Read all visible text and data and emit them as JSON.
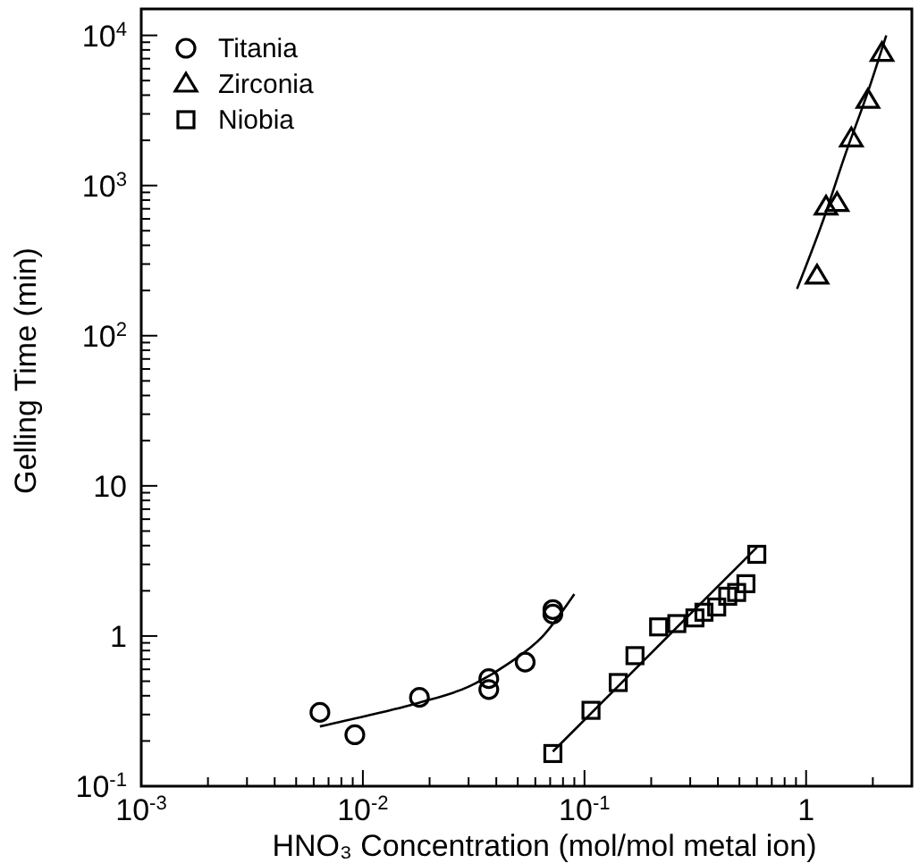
{
  "chart_data": {
    "type": "scatter",
    "xlabel": "HNO₃ Concentration (mol/mol metal ion)",
    "ylabel": "Gelling Time (min)",
    "log": "xy",
    "xlim": [
      0.001,
      3
    ],
    "ylim": [
      0.1,
      15000
    ],
    "xticks": [
      {
        "value": 0.001,
        "label": "10$^{-3}$"
      },
      {
        "value": 0.002,
        "label": null
      },
      {
        "value": 0.003,
        "label": null
      },
      {
        "value": 0.004,
        "label": null
      },
      {
        "value": 0.005,
        "label": null
      },
      {
        "value": 0.006,
        "label": null
      },
      {
        "value": 0.007,
        "label": null
      },
      {
        "value": 0.008,
        "label": null
      },
      {
        "value": 0.009,
        "label": null
      },
      {
        "value": 0.01,
        "label": "10$^{-2}$"
      },
      {
        "value": 0.02,
        "label": null
      },
      {
        "value": 0.03,
        "label": null
      },
      {
        "value": 0.04,
        "label": null
      },
      {
        "value": 0.05,
        "label": null
      },
      {
        "value": 0.06,
        "label": null
      },
      {
        "value": 0.07,
        "label": null
      },
      {
        "value": 0.08,
        "label": null
      },
      {
        "value": 0.09,
        "label": null
      },
      {
        "value": 0.1,
        "label": "10$^{-1}$"
      },
      {
        "value": 0.2,
        "label": null
      },
      {
        "value": 0.3,
        "label": null
      },
      {
        "value": 0.4,
        "label": null
      },
      {
        "value": 0.5,
        "label": null
      },
      {
        "value": 0.6,
        "label": null
      },
      {
        "value": 0.7,
        "label": null
      },
      {
        "value": 0.8,
        "label": null
      },
      {
        "value": 0.9,
        "label": null
      },
      1,
      {
        "value": 2,
        "label": null
      },
      {
        "value": 3,
        "label": null
      }
    ],
    "yticks": [
      {
        "value": 0.1,
        "label": "10$^{-1}$"
      },
      {
        "value": 0.2,
        "label": null
      },
      {
        "value": 0.3,
        "label": null
      },
      {
        "value": 0.4,
        "label": null
      },
      {
        "value": 0.5,
        "label": null
      },
      {
        "value": 0.6,
        "label": null
      },
      {
        "value": 0.7,
        "label": null
      },
      {
        "value": 0.8,
        "label": null
      },
      {
        "value": 0.9,
        "label": null
      },
      1,
      {
        "value": 2,
        "label": null
      },
      {
        "value": 3,
        "label": null
      },
      {
        "value": 4,
        "label": null
      },
      {
        "value": 5,
        "label": null
      },
      {
        "value": 6,
        "label": null
      },
      {
        "value": 7,
        "label": null
      },
      {
        "value": 8,
        "label": null
      },
      {
        "value": 9,
        "label": null
      },
      10,
      {
        "value": 20,
        "label": null
      },
      {
        "value": 30,
        "label": null
      },
      {
        "value": 40,
        "label": null
      },
      {
        "value": 50,
        "label": null
      },
      {
        "value": 60,
        "label": null
      },
      {
        "value": 70,
        "label": null
      },
      {
        "value": 80,
        "label": null
      },
      {
        "value": 90,
        "label": null
      },
      {
        "value": 100,
        "label": "10$^{2}$"
      },
      {
        "value": 200,
        "label": null
      },
      {
        "value": 300,
        "label": null
      },
      {
        "value": 400,
        "label": null
      },
      {
        "value": 500,
        "label": null
      },
      {
        "value": 600,
        "label": null
      },
      {
        "value": 700,
        "label": null
      },
      {
        "value": 800,
        "label": null
      },
      {
        "value": 900,
        "label": null
      },
      {
        "value": 1000,
        "label": "10$^{3}$"
      },
      {
        "value": 2000,
        "label": null
      },
      {
        "value": 3000,
        "label": null
      },
      {
        "value": 4000,
        "label": null
      },
      {
        "value": 5000,
        "label": null
      },
      {
        "value": 6000,
        "label": null
      },
      {
        "value": 7000,
        "label": null
      },
      {
        "value": 8000,
        "label": null
      },
      {
        "value": 9000,
        "label": null
      },
      {
        "value": 10000,
        "label": "10$^{4}$"
      }
    ],
    "grid": false,
    "legend": "top left",
    "series": [
      {
        "name": "Titania",
        "marker": "circle",
        "color": "#000000",
        "x": [
          0.0064,
          0.0092,
          0.018,
          0.037,
          0.037,
          0.054,
          0.072,
          0.072
        ],
        "values": [
          0.31,
          0.22,
          0.39,
          0.52,
          0.44,
          0.67,
          1.4,
          1.5
        ]
      },
      {
        "name": "Zirconia",
        "marker": "triangle",
        "color": "#000000",
        "x": [
          1.12,
          1.23,
          1.38,
          1.6,
          1.9,
          2.2
        ],
        "values": [
          250,
          720,
          760,
          2050,
          3700,
          7600
        ]
      },
      {
        "name": "Niobia",
        "marker": "square",
        "color": "#000000",
        "x": [
          0.072,
          0.107,
          0.142,
          0.169,
          0.216,
          0.261,
          0.315,
          0.346,
          0.395,
          0.443,
          0.486,
          0.535,
          0.599
        ],
        "values": [
          0.165,
          0.32,
          0.49,
          0.74,
          1.15,
          1.21,
          1.32,
          1.44,
          1.56,
          1.84,
          1.95,
          2.23,
          3.5
        ]
      },
      {
        "type": "line",
        "marker": "none",
        "line_style": "solid",
        "color": "#000000",
        "x": [
          0.0064,
          0.01,
          0.018,
          0.03,
          0.045,
          0.065,
          0.09
        ],
        "values": [
          0.25,
          0.29,
          0.36,
          0.46,
          0.65,
          1.0,
          1.9
        ]
      },
      {
        "type": "line",
        "marker": "none",
        "line_style": "solid",
        "color": "#000000",
        "x": [
          0.072,
          0.6
        ],
        "values": [
          0.17,
          3.9
        ]
      },
      {
        "type": "line",
        "marker": "none",
        "line_style": "solid",
        "color": "#000000",
        "x": [
          0.91,
          1.2,
          1.5,
          1.9,
          2.3
        ],
        "values": [
          205,
          600,
          1600,
          4200,
          10000
        ]
      }
    ]
  }
}
